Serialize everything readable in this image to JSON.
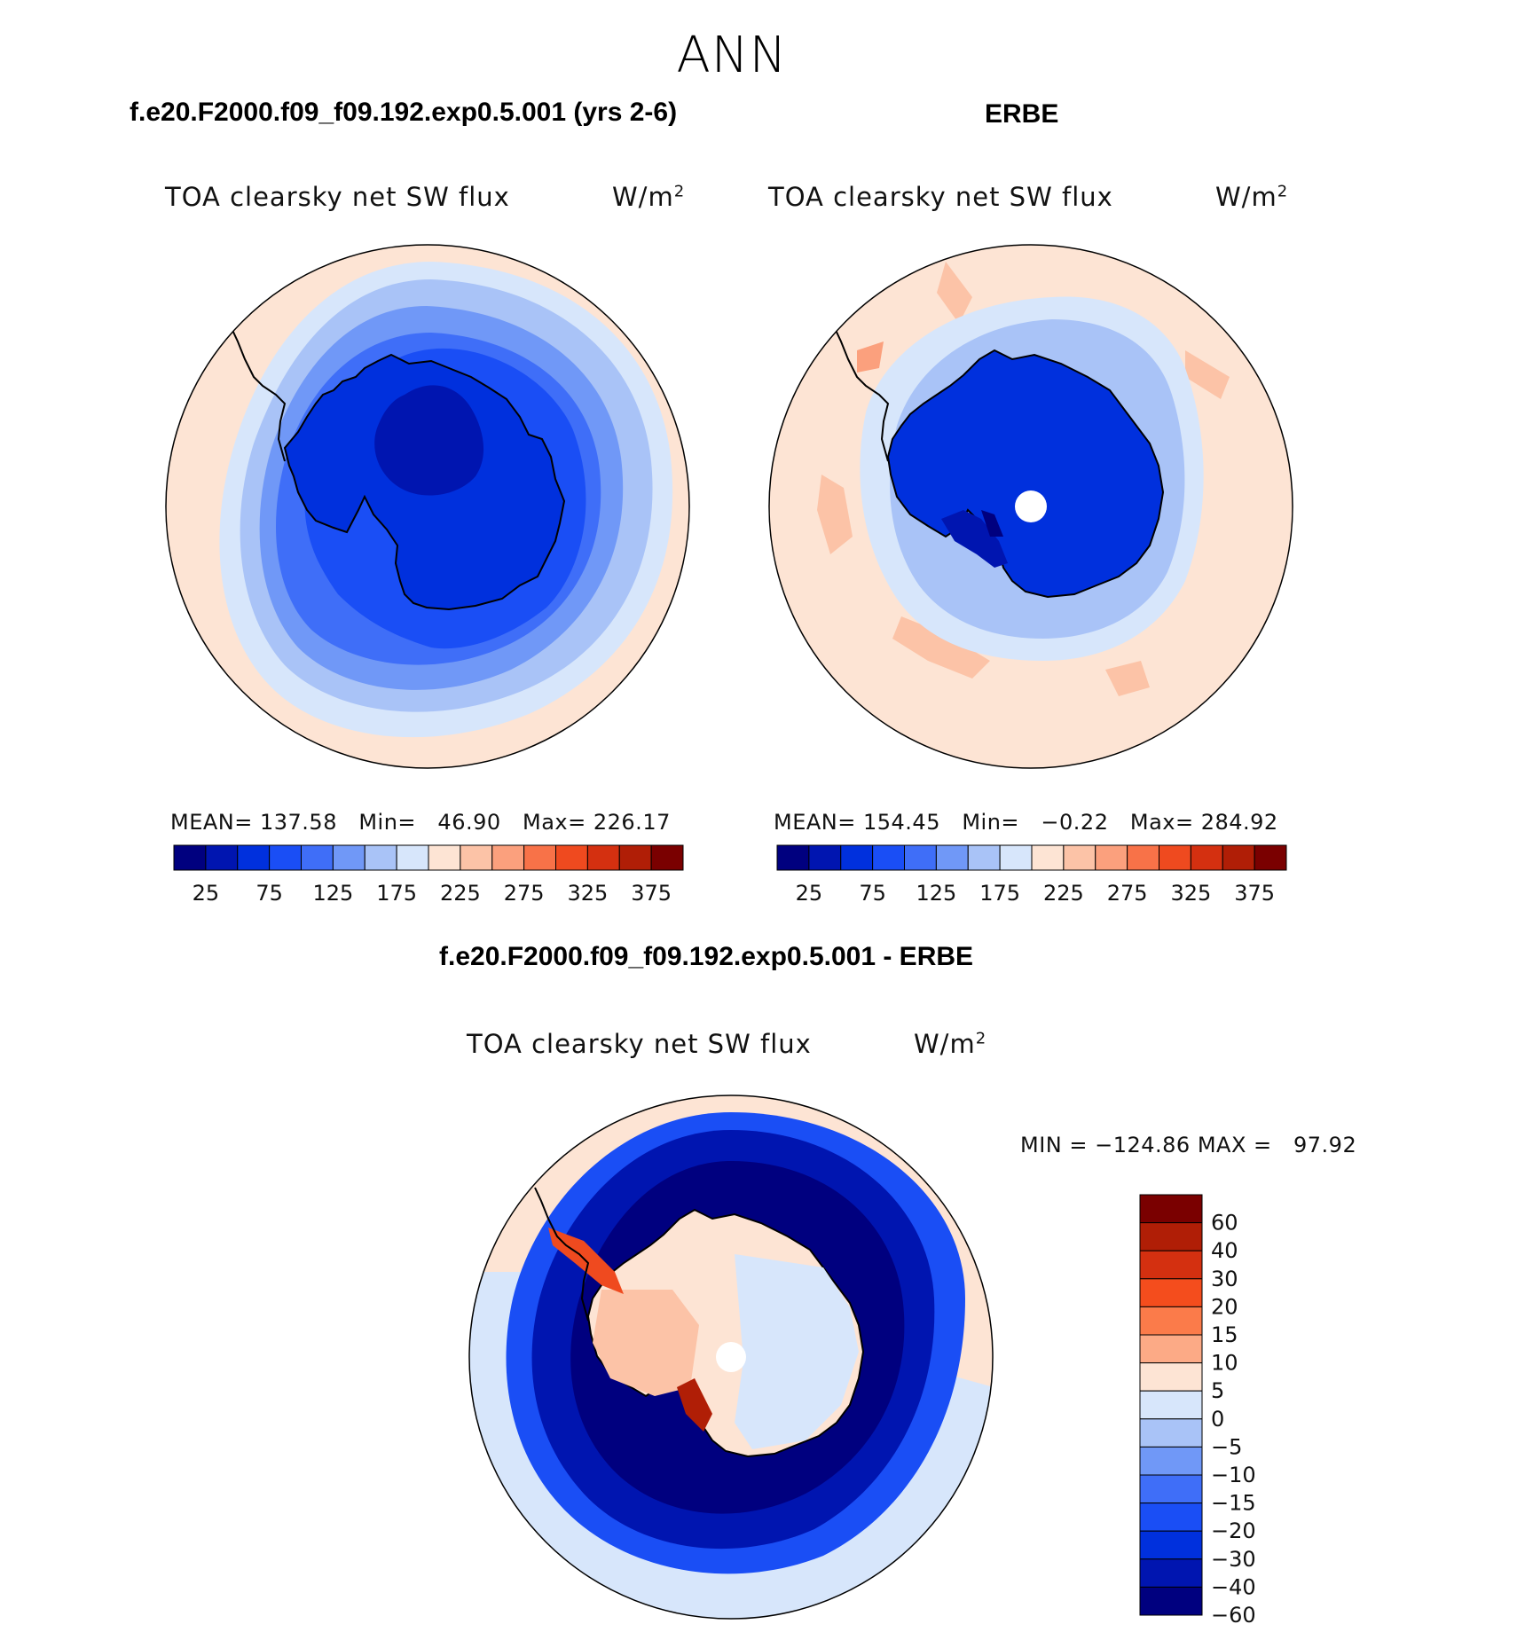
{
  "figure": {
    "season": "ANN",
    "model_title": "f.e20.F2000.f09_f09.192.exp0.5.001 (yrs 2-6)",
    "obs_title": "ERBE",
    "diff_title": "f.e20.F2000.f09_f09.192.exp0.5.001 - ERBE"
  },
  "panels": [
    {
      "variable": "TOA clearsky net SW flux",
      "units": "W/m",
      "units_sup": "2",
      "stats": "MEAN= 137.58   Min=   46.90   Max= 226.17"
    },
    {
      "variable": "TOA clearsky net SW flux",
      "units": "W/m",
      "units_sup": "2",
      "stats": "MEAN= 154.45   Min=   −0.22   Max= 284.92"
    },
    {
      "variable": "TOA clearsky net SW flux",
      "units": "W/m",
      "units_sup": "2",
      "stats": "MIN = −124.86 MAX =   97.92"
    }
  ],
  "abs_colorbar": {
    "colors": [
      "#00007f",
      "#0015b0",
      "#0030dd",
      "#1a4ef5",
      "#3f6ef8",
      "#7098f7",
      "#a9c3f7",
      "#d7e6fb",
      "#fde4d4",
      "#fcc3a7",
      "#fba07d",
      "#f87248",
      "#ef4a1f",
      "#d43010",
      "#b01e06",
      "#7a0000"
    ],
    "tick_labels": [
      "25",
      "75",
      "125",
      "175",
      "225",
      "275",
      "325",
      "375"
    ]
  },
  "diff_colorbar": {
    "colors_top_to_bottom": [
      "#7a0000",
      "#b01e06",
      "#d43010",
      "#f44d1d",
      "#fb7b4a",
      "#fcaa86",
      "#fde4d4",
      "#d7e6fb",
      "#a9c3f7",
      "#7098f7",
      "#3f6ef8",
      "#1a4ef5",
      "#0030dd",
      "#0015b0",
      "#00007f"
    ],
    "labels": [
      "60",
      "40",
      "30",
      "20",
      "15",
      "10",
      "5",
      "0",
      "−5",
      "−10",
      "−15",
      "−20",
      "−30",
      "−40",
      "−60"
    ]
  },
  "map_colors": {
    "ocean_warm": "#fde4d4",
    "blue_pale": "#d7e6fb",
    "blue_light": "#a9c3f7",
    "blue_mid": "#7098f7",
    "blue": "#3f6ef8",
    "blue_strong": "#1a4ef5",
    "blue_deep": "#0030dd",
    "blue_darker": "#0015b0",
    "navy": "#00007f",
    "orange_light": "#fcc3a7",
    "orange": "#fba07d",
    "red": "#ef4a1f",
    "dark_red": "#b01e06"
  }
}
